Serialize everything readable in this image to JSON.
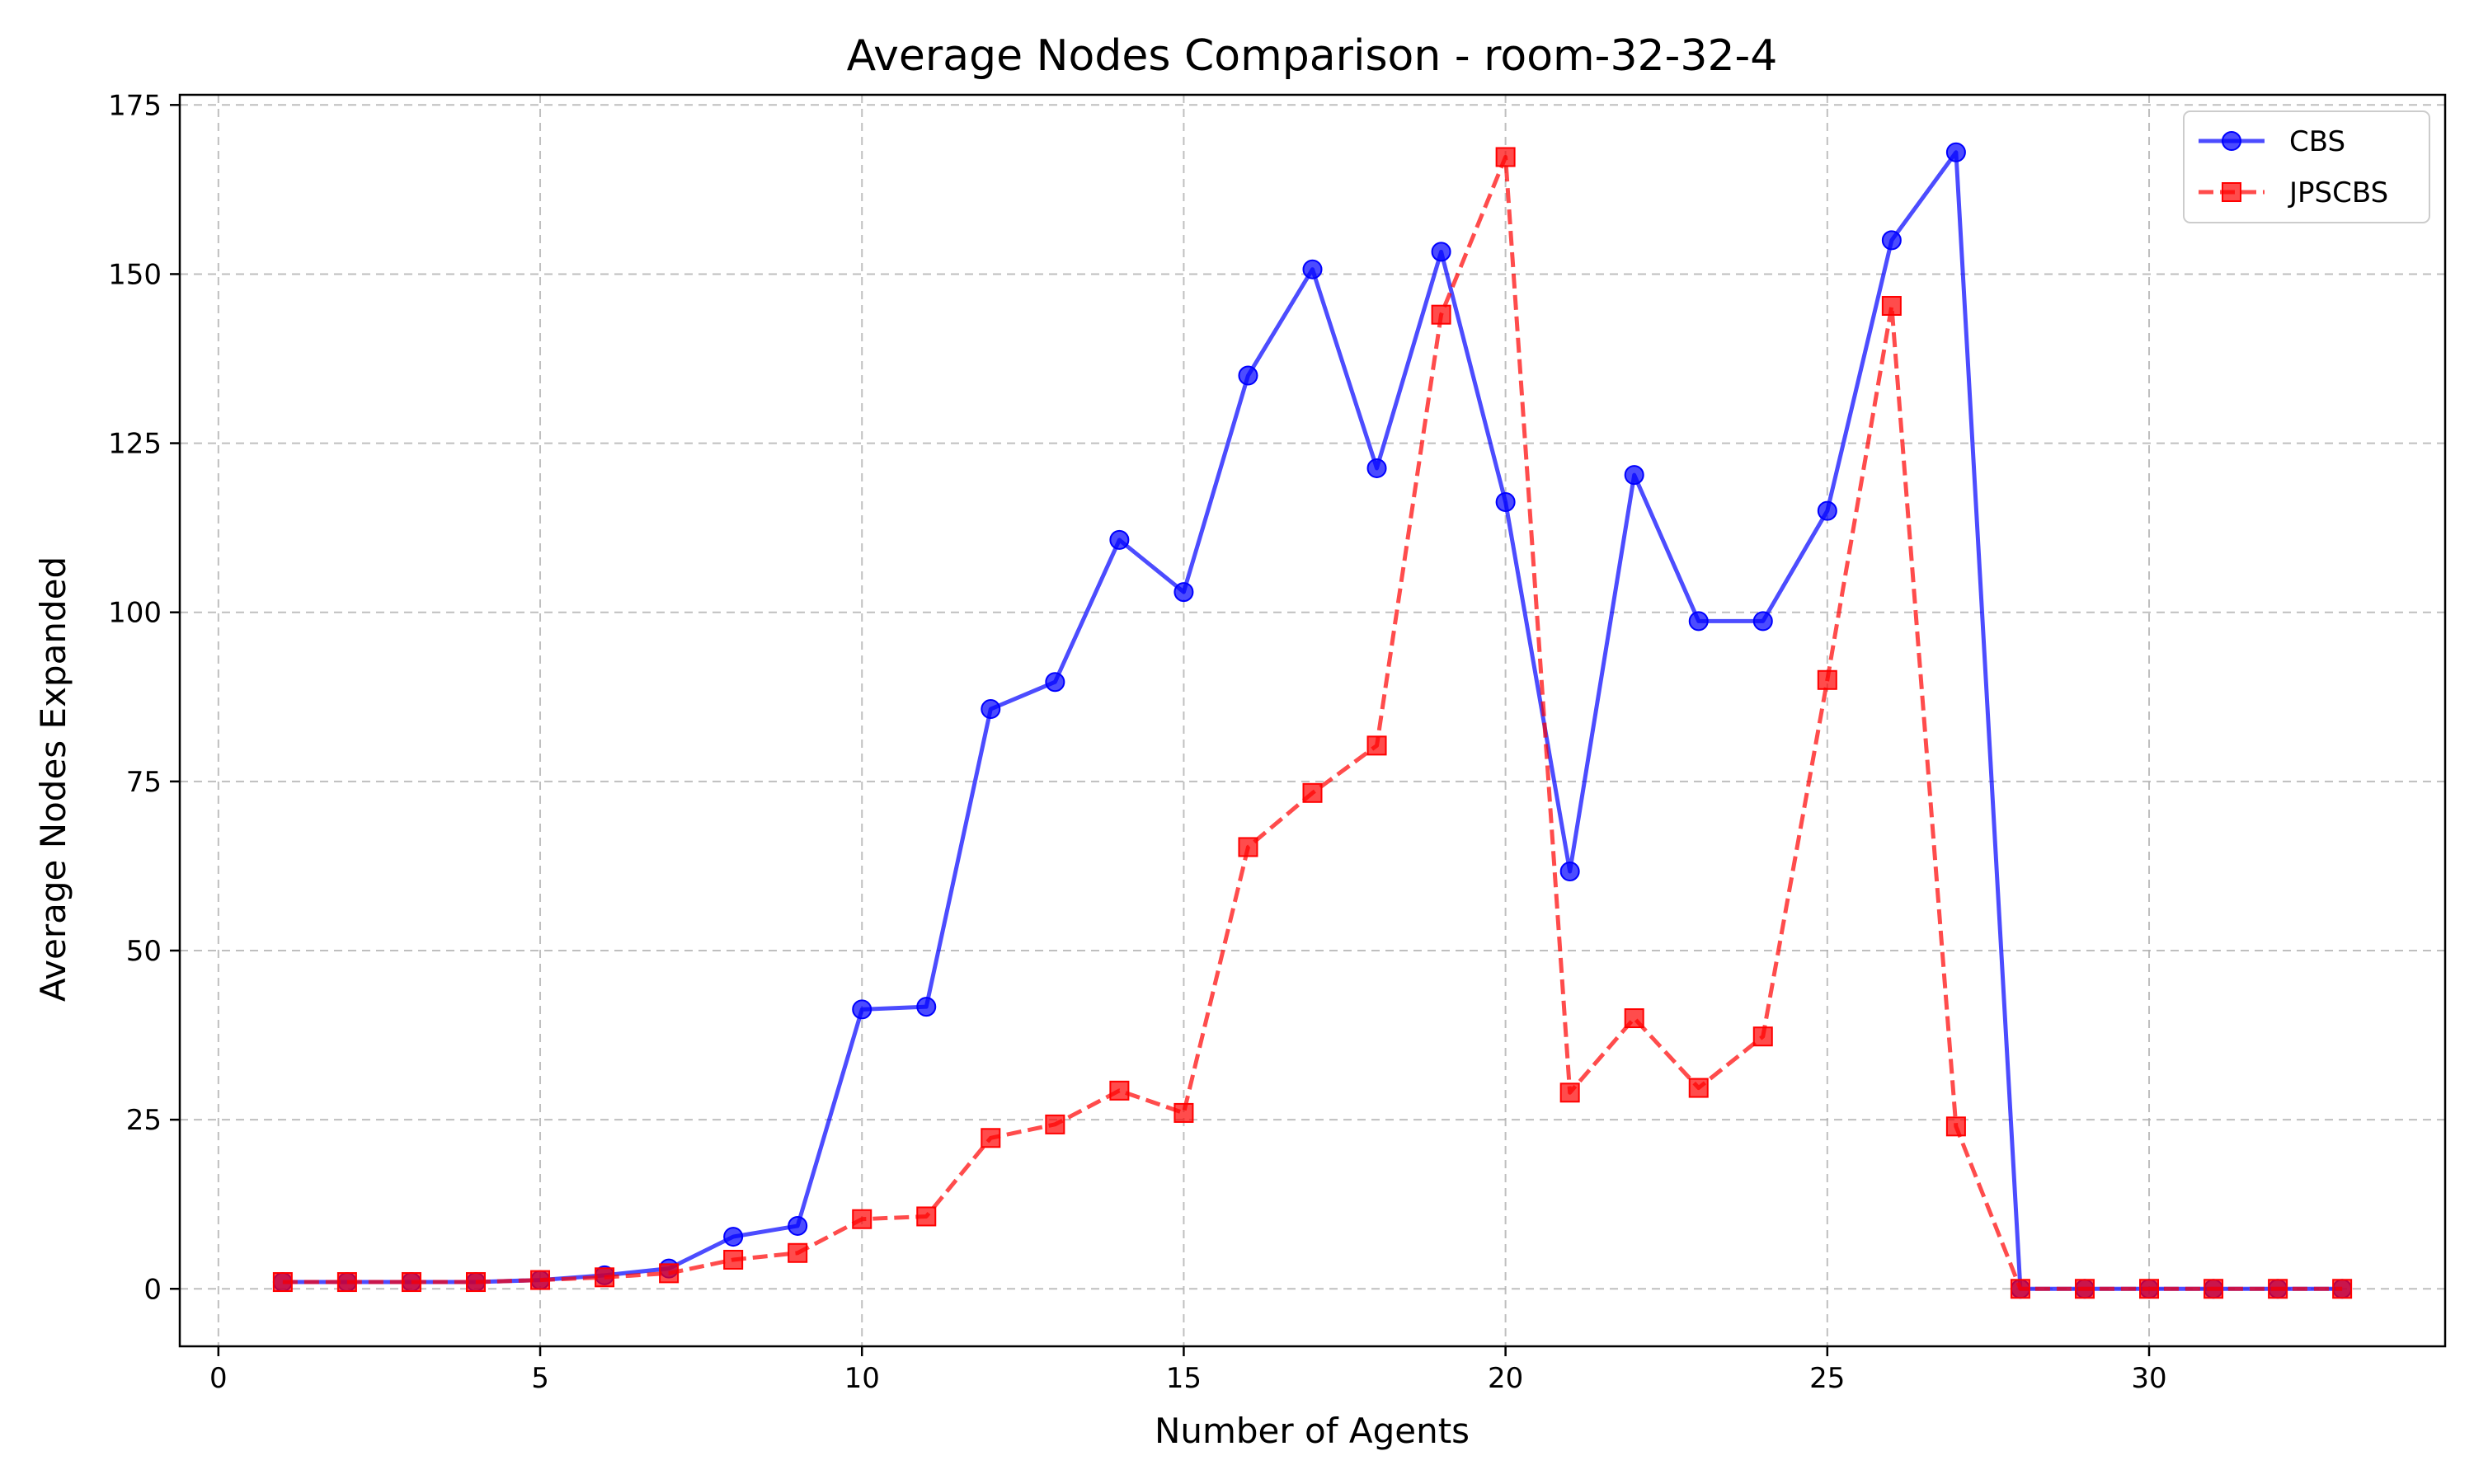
{
  "chart_data": {
    "type": "line",
    "title": "Average Nodes Comparison - room-32-32-4",
    "xlabel": "Number of Agents",
    "ylabel": "Average Nodes Expanded",
    "xlim": [
      -0.6,
      34.6
    ],
    "ylim": [
      -8.5,
      176.5
    ],
    "xticks": [
      0,
      5,
      10,
      15,
      20,
      25,
      30
    ],
    "yticks": [
      0,
      25,
      50,
      75,
      100,
      125,
      150,
      175
    ],
    "grid": true,
    "legend_position": "top-right",
    "x": [
      1,
      2,
      3,
      4,
      5,
      6,
      7,
      8,
      9,
      10,
      11,
      12,
      13,
      14,
      15,
      16,
      17,
      18,
      19,
      20,
      21,
      22,
      23,
      24,
      25,
      26,
      27,
      28,
      29,
      30,
      31,
      32,
      33
    ],
    "series": [
      {
        "name": "CBS",
        "color": "#0000ff",
        "marker": "circle",
        "line_style": "solid",
        "values": [
          1,
          1,
          1,
          1,
          1.3,
          2,
          3,
          7.7,
          9.3,
          41.3,
          41.7,
          85.7,
          89.7,
          110.7,
          103,
          135,
          150.7,
          121.3,
          153.3,
          116.3,
          61.7,
          120.3,
          98.7,
          98.7,
          115,
          155,
          168,
          0,
          0,
          0,
          0,
          0,
          0
        ]
      },
      {
        "name": "JPSCBS",
        "color": "#ff0000",
        "marker": "square",
        "line_style": "dashed",
        "values": [
          1,
          1,
          1,
          1,
          1.3,
          1.7,
          2.3,
          4.3,
          5.3,
          10.3,
          10.7,
          22.3,
          24.3,
          29.3,
          26,
          65.3,
          73.3,
          80.3,
          144,
          167.3,
          29,
          40,
          29.7,
          37.3,
          90,
          145.3,
          24,
          0,
          0,
          0,
          0,
          0,
          0
        ]
      }
    ]
  }
}
